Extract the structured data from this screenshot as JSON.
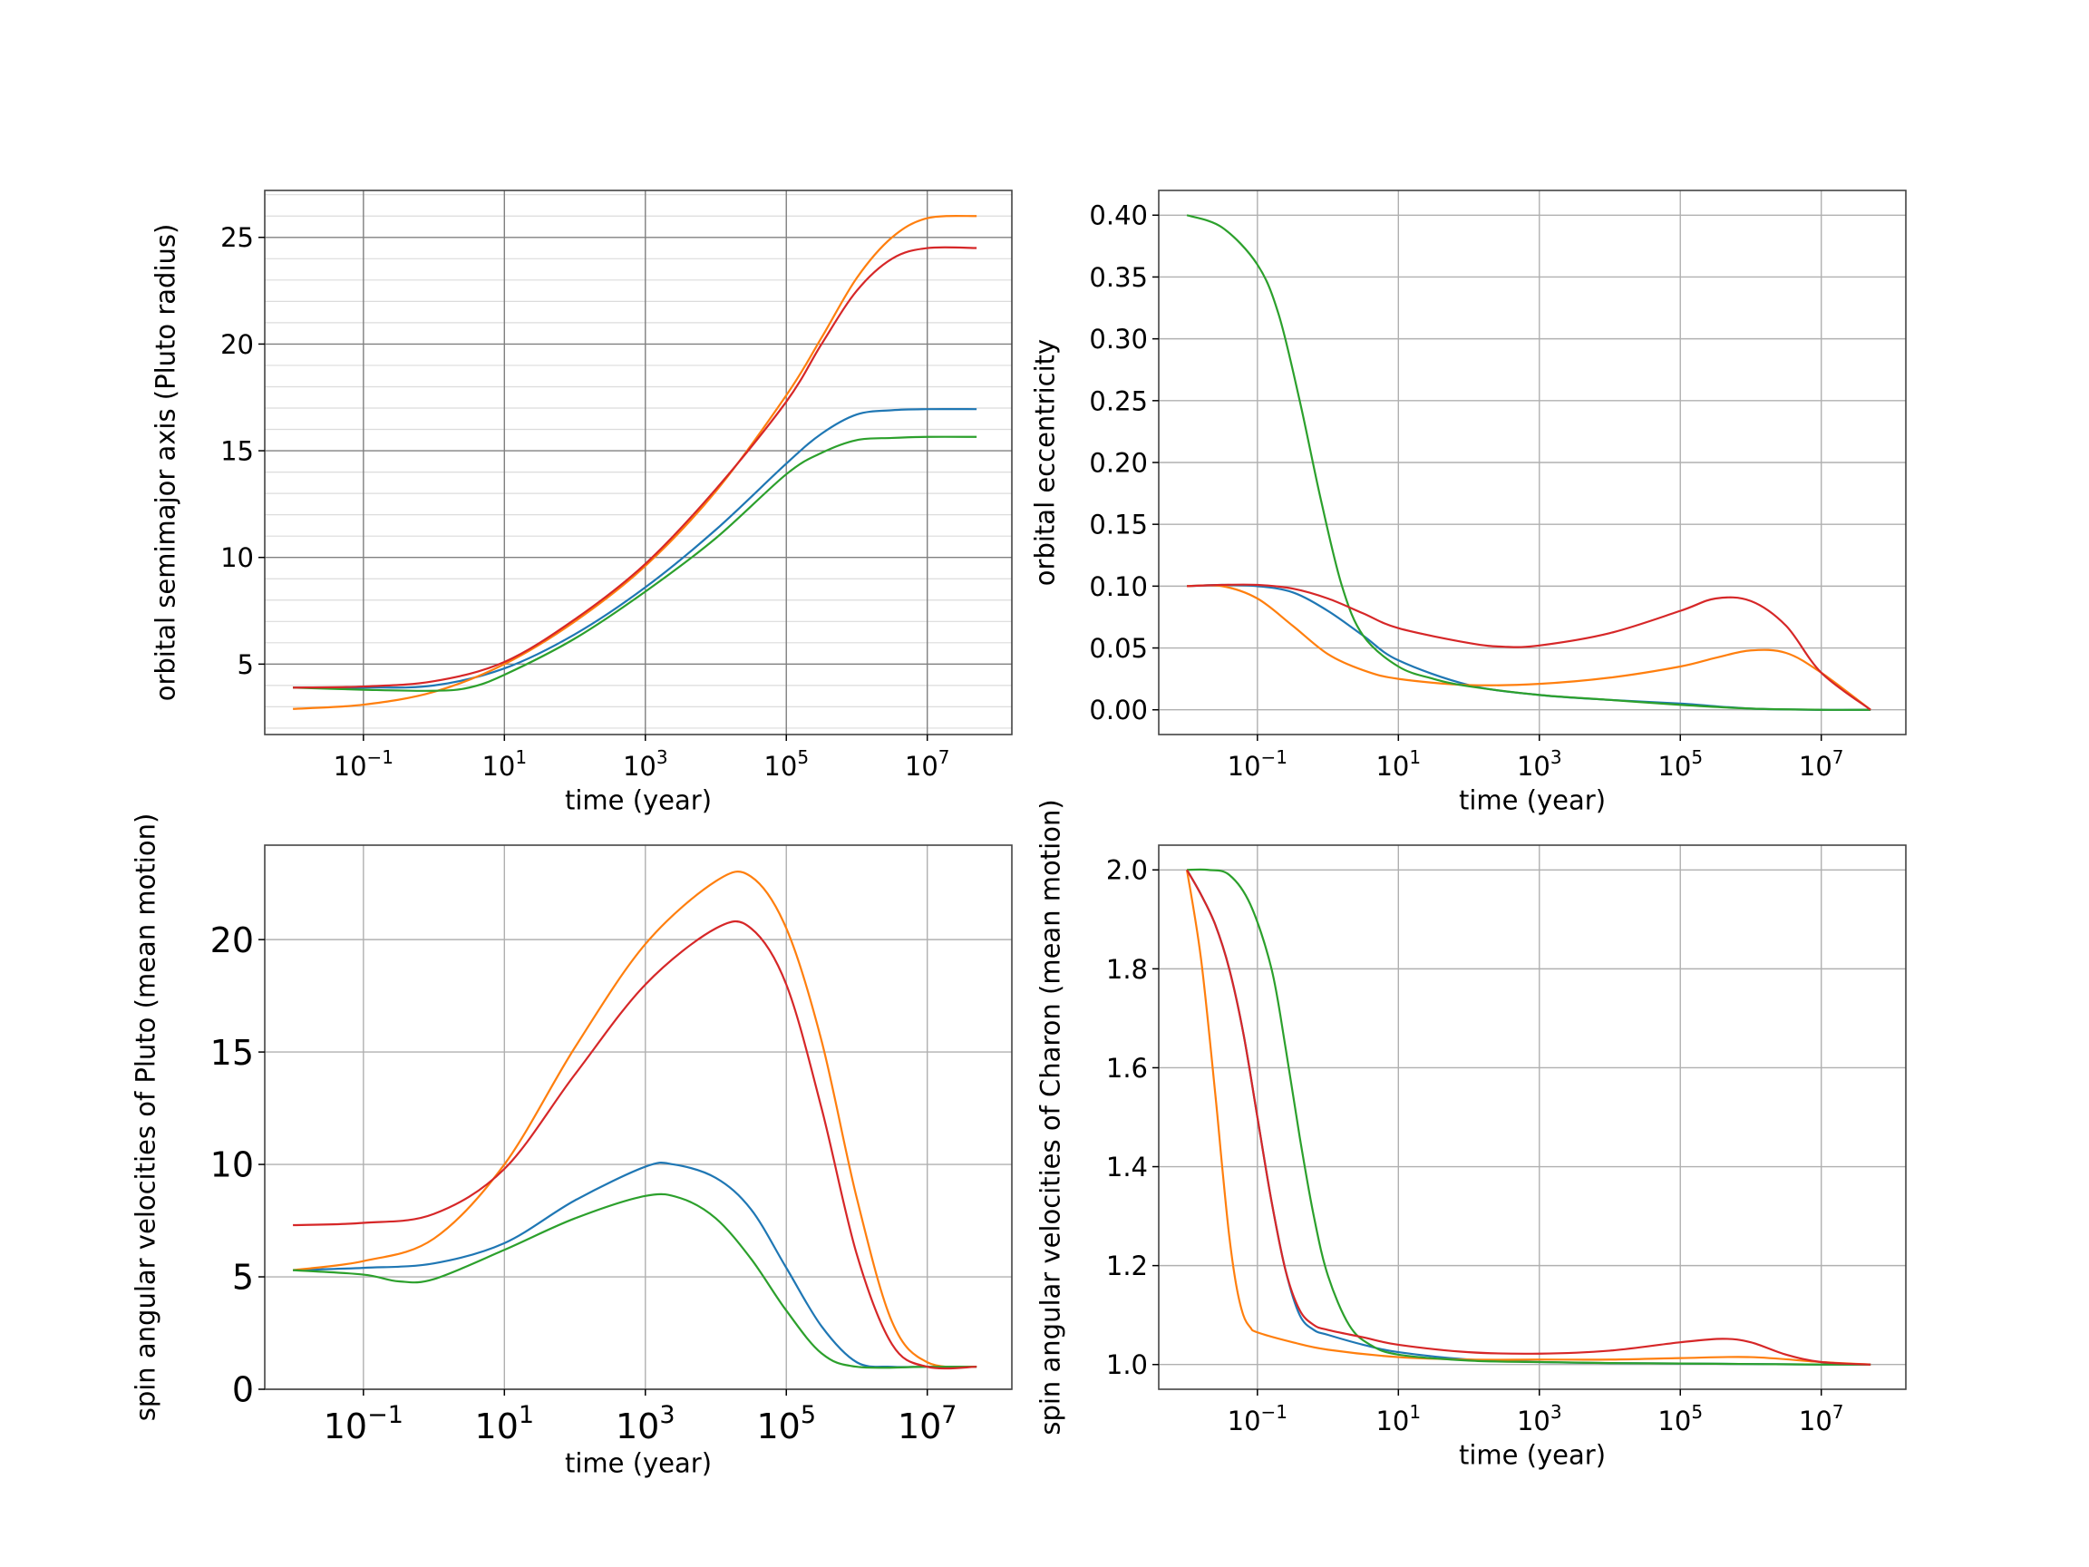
{
  "colors": {
    "blue": "#1f77b4",
    "orange": "#ff7f0e",
    "green": "#2ca02c",
    "red": "#d62728",
    "grid_major": "#b0b0b0",
    "grid_minor": "#dcdcdc",
    "grid_dark": "#808080"
  },
  "chart_data": [
    {
      "id": "semimajor",
      "type": "line",
      "xlabel": "time  (year)",
      "ylabel": "orbital semimajor axis (Pluto radius)",
      "xscale": "log",
      "xlim": [
        -2.4,
        8.2
      ],
      "ylim": [
        1.7,
        27.2
      ],
      "xticks": [
        -1,
        1,
        3,
        5,
        7
      ],
      "xtick_labels": [
        "10^-1",
        "10^1",
        "10^3",
        "10^5",
        "10^7"
      ],
      "yticks": [
        5,
        10,
        15,
        20,
        25
      ],
      "ytick_labels": [
        "5",
        "10",
        "15",
        "20",
        "25"
      ],
      "grid": "major and minor",
      "series": [
        {
          "color_key": "blue",
          "x": [
            -2,
            -1,
            0,
            1,
            2,
            3,
            4,
            5,
            5.5,
            6,
            6.5,
            7,
            7.7
          ],
          "y": [
            3.9,
            3.9,
            4.0,
            4.8,
            6.4,
            8.6,
            11.3,
            14.4,
            15.8,
            16.7,
            16.9,
            16.95,
            16.95
          ]
        },
        {
          "color_key": "orange",
          "x": [
            -2,
            -1,
            0,
            1,
            2,
            3,
            4,
            5,
            5.5,
            6,
            6.5,
            7,
            7.7
          ],
          "y": [
            2.9,
            3.1,
            3.7,
            5.0,
            7.0,
            9.6,
            13.1,
            17.6,
            20.3,
            23.1,
            25.0,
            25.9,
            26.0
          ]
        },
        {
          "color_key": "green",
          "x": [
            -2,
            -1,
            0,
            0.5,
            1,
            2,
            3,
            4,
            5,
            5.5,
            6,
            6.5,
            7,
            7.7
          ],
          "y": [
            3.9,
            3.8,
            3.75,
            3.9,
            4.5,
            6.2,
            8.4,
            10.9,
            13.9,
            14.9,
            15.5,
            15.6,
            15.65,
            15.65
          ]
        },
        {
          "color_key": "red",
          "x": [
            -2,
            -1,
            0,
            1,
            2,
            3,
            4,
            5,
            5.5,
            6,
            6.5,
            7,
            7.7
          ],
          "y": [
            3.9,
            3.95,
            4.2,
            5.1,
            7.1,
            9.7,
            13.2,
            17.3,
            20.0,
            22.5,
            24.0,
            24.5,
            24.5
          ]
        }
      ]
    },
    {
      "id": "eccentricity",
      "type": "line",
      "xlabel": "time  (year)",
      "ylabel": "orbital eccentricity",
      "xscale": "log",
      "xlim": [
        -2.4,
        8.2
      ],
      "ylim": [
        -0.02,
        0.42
      ],
      "xticks": [
        -1,
        1,
        3,
        5,
        7
      ],
      "xtick_labels": [
        "10^-1",
        "10^1",
        "10^3",
        "10^5",
        "10^7"
      ],
      "yticks": [
        0.0,
        0.05,
        0.1,
        0.15,
        0.2,
        0.25,
        0.3,
        0.35,
        0.4
      ],
      "ytick_labels": [
        "0.00",
        "0.05",
        "0.10",
        "0.15",
        "0.20",
        "0.25",
        "0.30",
        "0.35",
        "0.40"
      ],
      "grid": "major",
      "series": [
        {
          "color_key": "blue",
          "x": [
            -2,
            -1.5,
            -1,
            -0.5,
            0,
            0.5,
            1,
            2,
            3,
            4,
            5,
            6,
            7,
            7.7
          ],
          "y": [
            0.1,
            0.101,
            0.1,
            0.095,
            0.08,
            0.06,
            0.04,
            0.02,
            0.012,
            0.008,
            0.005,
            0.001,
            0.0,
            0.0
          ]
        },
        {
          "color_key": "orange",
          "x": [
            -2,
            -1.5,
            -1,
            -0.5,
            0,
            0.5,
            1,
            2,
            3,
            4,
            5,
            5.5,
            6,
            6.5,
            7,
            7.7
          ],
          "y": [
            0.1,
            0.1,
            0.09,
            0.068,
            0.045,
            0.032,
            0.025,
            0.02,
            0.021,
            0.026,
            0.035,
            0.042,
            0.048,
            0.046,
            0.03,
            0.0
          ]
        },
        {
          "color_key": "green",
          "x": [
            -2,
            -1.5,
            -1,
            -0.7,
            -0.4,
            -0.1,
            0.2,
            0.5,
            1,
            1.5,
            2,
            3,
            4,
            5,
            6,
            7,
            7.7
          ],
          "y": [
            0.4,
            0.39,
            0.36,
            0.32,
            0.25,
            0.17,
            0.1,
            0.06,
            0.035,
            0.025,
            0.019,
            0.012,
            0.008,
            0.004,
            0.001,
            0.0,
            0.0
          ]
        },
        {
          "color_key": "red",
          "x": [
            -2,
            -1.5,
            -1,
            -0.5,
            0,
            0.5,
            1,
            2,
            2.5,
            3,
            4,
            5,
            5.5,
            6,
            6.5,
            7,
            7.7
          ],
          "y": [
            0.1,
            0.101,
            0.101,
            0.098,
            0.09,
            0.078,
            0.066,
            0.054,
            0.051,
            0.052,
            0.062,
            0.08,
            0.09,
            0.088,
            0.068,
            0.03,
            0.0
          ]
        }
      ]
    },
    {
      "id": "pluto_spin",
      "type": "line",
      "xlabel": "time (year)",
      "ylabel": "spin angular velocities of Pluto (mean motion)",
      "xscale": "log",
      "xlim": [
        -2.4,
        8.2
      ],
      "ylim": [
        0,
        24.2
      ],
      "xticks": [
        -1,
        1,
        3,
        5,
        7
      ],
      "xtick_labels": [
        "10^-1",
        "10^1",
        "10^3",
        "10^5",
        "10^7"
      ],
      "yticks": [
        0,
        5,
        10,
        15,
        20
      ],
      "ytick_labels": [
        "0",
        "5",
        "10",
        "15",
        "20"
      ],
      "grid": "major",
      "series": [
        {
          "color_key": "blue",
          "x": [
            -2,
            -1,
            0,
            1,
            2,
            3,
            3.4,
            4,
            4.5,
            5,
            5.5,
            6,
            6.5,
            7,
            7.7
          ],
          "y": [
            5.3,
            5.4,
            5.6,
            6.5,
            8.4,
            9.9,
            10.0,
            9.4,
            8.0,
            5.4,
            2.8,
            1.2,
            1.0,
            1.0,
            1.0
          ]
        },
        {
          "color_key": "orange",
          "x": [
            -2,
            -1,
            0,
            1,
            2,
            3,
            4,
            4.5,
            5,
            5.5,
            6,
            6.5,
            7,
            7.7
          ],
          "y": [
            5.3,
            5.7,
            6.7,
            10.0,
            15.2,
            19.8,
            22.6,
            22.8,
            20.5,
            15.5,
            8.5,
            3.0,
            1.2,
            1.0
          ]
        },
        {
          "color_key": "green",
          "x": [
            -2,
            -1,
            -0.5,
            0,
            1,
            2,
            3,
            3.5,
            4,
            4.5,
            5,
            5.5,
            6,
            7,
            7.7
          ],
          "y": [
            5.3,
            5.1,
            4.8,
            4.9,
            6.2,
            7.6,
            8.6,
            8.5,
            7.6,
            5.8,
            3.5,
            1.6,
            1.0,
            1.0,
            1.0
          ]
        },
        {
          "color_key": "red",
          "x": [
            -2,
            -1,
            0,
            1,
            2,
            3,
            4,
            4.5,
            5,
            5.5,
            6,
            6.5,
            7,
            7.7
          ],
          "y": [
            7.3,
            7.4,
            7.8,
            9.8,
            14.0,
            18.0,
            20.5,
            20.5,
            18.0,
            12.5,
            6.0,
            2.0,
            1.0,
            1.0
          ]
        }
      ]
    },
    {
      "id": "charon_spin",
      "type": "line",
      "xlabel": "time  (year)",
      "ylabel": "spin angular velocities of Charon (mean motion)",
      "xscale": "log",
      "xlim": [
        -2.4,
        8.2
      ],
      "ylim": [
        0.95,
        2.05
      ],
      "xticks": [
        -1,
        1,
        3,
        5,
        7
      ],
      "xtick_labels": [
        "10^-1",
        "10^1",
        "10^3",
        "10^5",
        "10^7"
      ],
      "yticks": [
        1.0,
        1.2,
        1.4,
        1.6,
        1.8,
        2.0
      ],
      "ytick_labels": [
        "1.0",
        "1.2",
        "1.4",
        "1.6",
        "1.8",
        "2.0"
      ],
      "grid": "major",
      "series": [
        {
          "color_key": "blue",
          "x": [
            -2,
            -1.8,
            -1.6,
            -1.4,
            -1.2,
            -1.0,
            -0.8,
            -0.6,
            -0.4,
            -0.2,
            0,
            0.5,
            1,
            2,
            3,
            4,
            5,
            6,
            7,
            7.7
          ],
          "y": [
            2.0,
            1.95,
            1.89,
            1.8,
            1.67,
            1.5,
            1.33,
            1.19,
            1.1,
            1.07,
            1.06,
            1.04,
            1.025,
            1.01,
            1.005,
            1.003,
            1.002,
            1.001,
            1.0,
            1.0
          ]
        },
        {
          "color_key": "orange",
          "x": [
            -2,
            -1.8,
            -1.6,
            -1.5,
            -1.4,
            -1.3,
            -1.2,
            -1.1,
            -1,
            -0.5,
            0,
            1,
            2,
            3,
            4,
            5,
            6,
            7,
            7.7
          ],
          "y": [
            2.0,
            1.82,
            1.55,
            1.4,
            1.26,
            1.16,
            1.1,
            1.075,
            1.065,
            1.045,
            1.03,
            1.015,
            1.01,
            1.01,
            1.01,
            1.013,
            1.015,
            1.005,
            1.0
          ]
        },
        {
          "color_key": "green",
          "x": [
            -2,
            -1.7,
            -1.4,
            -1.1,
            -0.8,
            -0.6,
            -0.4,
            -0.2,
            0,
            0.3,
            0.6,
            1,
            2,
            3,
            4,
            5,
            6,
            7,
            7.7
          ],
          "y": [
            2.0,
            2.0,
            1.99,
            1.93,
            1.8,
            1.64,
            1.46,
            1.3,
            1.18,
            1.08,
            1.04,
            1.02,
            1.008,
            1.005,
            1.003,
            1.002,
            1.001,
            1.0,
            1.0
          ]
        },
        {
          "color_key": "red",
          "x": [
            -2,
            -1.8,
            -1.6,
            -1.4,
            -1.2,
            -1.0,
            -0.8,
            -0.6,
            -0.4,
            -0.2,
            0,
            0.5,
            1,
            2,
            3,
            4,
            5,
            5.6,
            6,
            6.5,
            7,
            7.7
          ],
          "y": [
            2.0,
            1.95,
            1.89,
            1.8,
            1.67,
            1.5,
            1.33,
            1.19,
            1.11,
            1.08,
            1.07,
            1.055,
            1.04,
            1.025,
            1.022,
            1.028,
            1.045,
            1.052,
            1.045,
            1.02,
            1.005,
            1.0
          ]
        }
      ]
    }
  ]
}
